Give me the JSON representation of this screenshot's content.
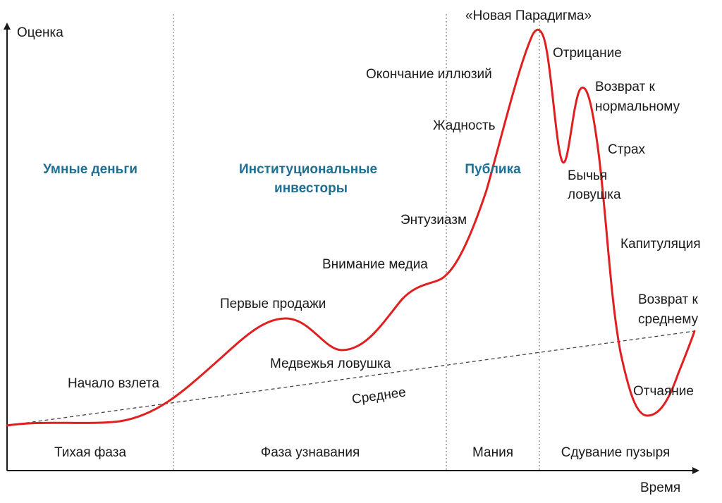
{
  "axes": {
    "y_label": "Оценка",
    "x_label": "Время"
  },
  "groups": {
    "smart_money": "Умные деньги",
    "institutional_1": "Институциональные",
    "institutional_2": "инвесторы",
    "public": "Публика"
  },
  "phases": {
    "stealth": "Тихая фаза",
    "awareness": "Фаза узнавания",
    "mania": "Мания",
    "blowoff": "Сдувание пузыря"
  },
  "stages": {
    "takeoff": "Начало взлета",
    "first_sell": "Первые продажи",
    "bear_trap": "Медвежья ловушка",
    "mean": "Среднее",
    "media": "Внимание медиа",
    "enthusiasm": "Энтузиазм",
    "greed": "Жадность",
    "delusion": "Окончание иллюзий",
    "new_paradigm": "«Новая Парадигма»",
    "denial": "Отрицание",
    "return_normal_1": "Возврат к",
    "return_normal_2": "нормальному",
    "fear": "Страх",
    "bull_trap_1": "Бычья",
    "bull_trap_2": "ловушка",
    "capitulation": "Капитуляция",
    "return_mean_1": "Возврат к",
    "return_mean_2": "среднему",
    "despair": "Отчаяние"
  },
  "colors": {
    "curve": "#e02020",
    "group_text": "#1f6f93",
    "axis": "#1a1a1a",
    "divider": "#666666"
  }
}
